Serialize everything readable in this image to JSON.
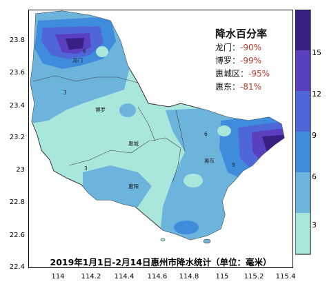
{
  "map": {
    "title": "降水百分率",
    "caption": "2019年1月1日-2月14日惠州市降水统计（单位：毫米）",
    "y_ticks": [
      "23.8",
      "23.6",
      "23.4",
      "23.2",
      "23",
      "22.8",
      "22.6",
      "22.4"
    ],
    "x_ticks": [
      "114",
      "114.2",
      "114.4",
      "114.6",
      "114.8",
      "115",
      "115.2",
      "115.4"
    ],
    "stats": [
      {
        "name": "龙门：",
        "value": "-90%"
      },
      {
        "name": "博罗：",
        "value": "-99%"
      },
      {
        "name": "惠城区：",
        "value": "-95%"
      },
      {
        "name": "惠东：",
        "value": "-81%"
      }
    ],
    "city_labels": [
      "龙门",
      "博罗",
      "惠城",
      "惠阳",
      "惠东"
    ],
    "contour_labels": [
      "3",
      "6",
      "9"
    ],
    "colorbar": {
      "ticks": [
        "15",
        "12",
        "9",
        "6",
        "3"
      ],
      "colors": [
        "#3a1f82",
        "#5a3fbe",
        "#4f66d8",
        "#3f8cdc",
        "#6cb4dc",
        "#a9e6dc"
      ]
    }
  }
}
